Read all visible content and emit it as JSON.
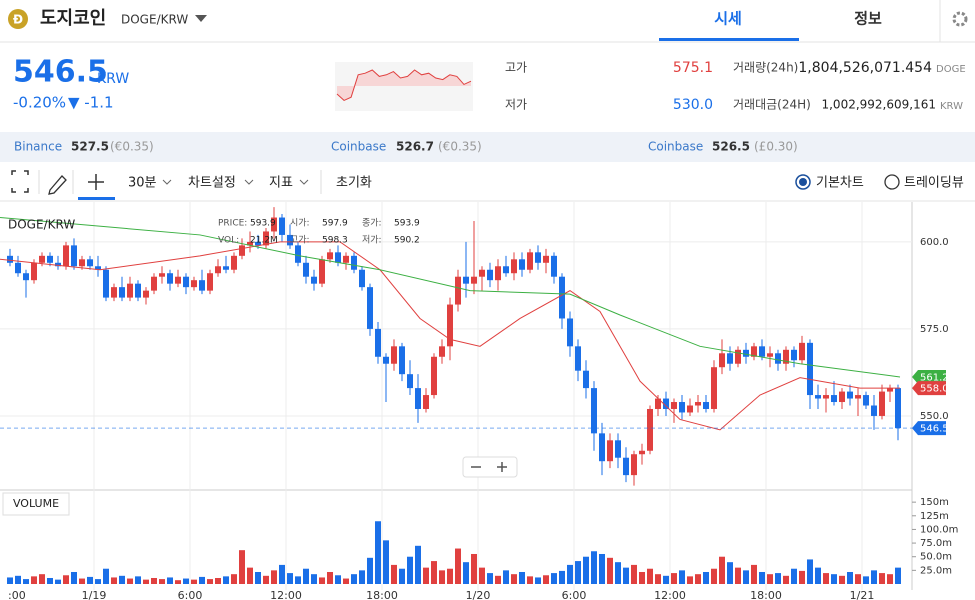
{
  "header": {
    "coin_name": "도지코인",
    "pair": "DOGE/KRW",
    "icon": "Ð",
    "tabs": [
      "시세",
      "정보"
    ]
  },
  "price": {
    "value": "546.5",
    "unit": "KRW",
    "change_pct": "-0.20%",
    "change": "▼ -1.1"
  },
  "sparkline": {
    "values": [
      560,
      556,
      558,
      572,
      573,
      575,
      571,
      572,
      574,
      570,
      571,
      575,
      572,
      573,
      570,
      569,
      572,
      571,
      566,
      568
    ],
    "ylim": [
      550,
      580
    ]
  },
  "stats": {
    "high_label": "고가",
    "high": "575.1",
    "low_label": "저가",
    "low": "530.0",
    "volume_label": "거래량(24h)",
    "volume": "1,804,526,071.454",
    "volume_unit": "DOGE",
    "amount_label": "거래대금(24H)",
    "amount": "1,002,992,609,161",
    "amount_unit": "KRW"
  },
  "exchanges": [
    {
      "name": "Binance",
      "price": "527.5",
      "ref": "(€0.35)"
    },
    {
      "name": "Coinbase",
      "price": "526.7",
      "ref": "(€0.35)"
    },
    {
      "name": "Coinbase",
      "price": "526.5",
      "ref": "(£0.30)"
    }
  ],
  "toolbar": {
    "interval": "30분",
    "settings": "차트설정",
    "indicator": "지표",
    "reset": "초기화",
    "radio_basic": "기본차트",
    "radio_tv": "트레이딩뷰"
  },
  "chart_data": {
    "type": "candlestick",
    "pair_label": "DOGE/KRW",
    "info": {
      "price_label": "PRICE:",
      "price": "593.9",
      "open_label": "시가:",
      "open": "597.9",
      "close_label": "종가:",
      "close": "593.9",
      "vol_label": "VOL:",
      "vol": "21.2M",
      "high_label": "고가:",
      "high": "598.3",
      "low_label": "저가:",
      "low": "590.2"
    },
    "up_color": "#e0403f",
    "down_color": "#1a6fe8",
    "ohlc": [
      [
        596,
        598,
        593,
        594
      ],
      [
        594,
        596,
        590,
        591
      ],
      [
        591,
        592,
        584,
        589
      ],
      [
        589,
        595,
        588,
        594
      ],
      [
        594,
        597,
        593,
        596
      ],
      [
        596,
        597,
        593,
        594
      ],
      [
        594,
        596,
        592,
        593
      ],
      [
        593,
        600,
        592,
        599
      ],
      [
        599,
        601,
        592,
        593
      ],
      [
        593,
        596,
        592,
        595
      ],
      [
        595,
        596,
        592,
        593
      ],
      [
        593,
        596,
        590,
        592
      ],
      [
        592,
        593,
        583,
        584
      ],
      [
        584,
        588,
        583,
        587
      ],
      [
        587,
        590,
        583,
        584
      ],
      [
        584,
        590,
        583,
        588
      ],
      [
        588,
        589,
        583,
        584
      ],
      [
        584,
        587,
        582,
        586
      ],
      [
        586,
        591,
        585,
        590
      ],
      [
        590,
        593,
        588,
        591
      ],
      [
        591,
        592,
        586,
        588
      ],
      [
        588,
        592,
        587,
        590
      ],
      [
        590,
        591,
        585,
        587
      ],
      [
        587,
        590,
        586,
        589
      ],
      [
        589,
        592,
        585,
        586
      ],
      [
        586,
        592,
        585,
        591
      ],
      [
        591,
        595,
        590,
        593
      ],
      [
        593,
        596,
        591,
        592
      ],
      [
        592,
        597,
        591,
        596
      ],
      [
        596,
        601,
        595,
        599
      ],
      [
        599,
        603,
        597,
        600
      ],
      [
        600,
        602,
        598,
        599
      ],
      [
        599,
        604,
        598,
        603
      ],
      [
        603,
        610,
        601,
        607
      ],
      [
        607,
        608,
        600,
        602
      ],
      [
        602,
        605,
        598,
        599
      ],
      [
        599,
        600,
        593,
        594
      ],
      [
        594,
        596,
        588,
        590
      ],
      [
        590,
        592,
        586,
        588
      ],
      [
        588,
        596,
        587,
        595
      ],
      [
        595,
        598,
        594,
        597
      ],
      [
        597,
        599,
        593,
        594
      ],
      [
        594,
        597,
        592,
        596
      ],
      [
        596,
        597,
        591,
        592
      ],
      [
        592,
        593,
        586,
        587
      ],
      [
        587,
        588,
        573,
        575
      ],
      [
        575,
        577,
        565,
        567
      ],
      [
        567,
        568,
        554,
        565
      ],
      [
        565,
        572,
        563,
        570
      ],
      [
        570,
        571,
        560,
        562
      ],
      [
        562,
        566,
        556,
        558
      ],
      [
        558,
        562,
        548,
        552
      ],
      [
        552,
        558,
        551,
        556
      ],
      [
        556,
        568,
        555,
        567
      ],
      [
        567,
        572,
        565,
        570
      ],
      [
        570,
        584,
        566,
        582
      ],
      [
        582,
        592,
        580,
        590
      ],
      [
        590,
        600,
        584,
        588
      ],
      [
        588,
        606,
        585,
        590
      ],
      [
        590,
        593,
        586,
        592
      ],
      [
        592,
        594,
        587,
        589
      ],
      [
        589,
        595,
        586,
        593
      ],
      [
        593,
        596,
        590,
        591
      ],
      [
        591,
        597,
        589,
        595
      ],
      [
        595,
        597,
        590,
        592
      ],
      [
        592,
        598,
        591,
        597
      ],
      [
        597,
        599,
        592,
        594
      ],
      [
        594,
        598,
        591,
        596
      ],
      [
        596,
        597,
        588,
        590
      ],
      [
        590,
        591,
        575,
        578
      ],
      [
        578,
        580,
        567,
        570
      ],
      [
        570,
        572,
        560,
        563
      ],
      [
        563,
        566,
        555,
        558
      ],
      [
        558,
        560,
        540,
        545
      ],
      [
        545,
        548,
        533,
        537
      ],
      [
        537,
        545,
        535,
        543
      ],
      [
        543,
        545,
        535,
        538
      ],
      [
        538,
        541,
        531,
        533
      ],
      [
        533,
        540,
        530,
        539
      ],
      [
        539,
        542,
        536,
        540
      ],
      [
        540,
        553,
        539,
        552
      ],
      [
        552,
        556,
        550,
        555
      ],
      [
        555,
        557,
        550,
        552
      ],
      [
        552,
        555,
        548,
        554
      ],
      [
        554,
        556,
        549,
        551
      ],
      [
        551,
        555,
        550,
        553
      ],
      [
        553,
        556,
        551,
        554
      ],
      [
        554,
        556,
        551,
        552
      ],
      [
        552,
        566,
        551,
        564
      ],
      [
        564,
        572,
        562,
        568
      ],
      [
        568,
        570,
        563,
        565
      ],
      [
        565,
        570,
        564,
        569
      ],
      [
        569,
        571,
        565,
        567
      ],
      [
        567,
        571,
        566,
        570
      ],
      [
        570,
        572,
        566,
        567
      ],
      [
        567,
        570,
        564,
        568
      ],
      [
        568,
        569,
        563,
        565
      ],
      [
        565,
        570,
        563,
        569
      ],
      [
        569,
        570,
        564,
        566
      ],
      [
        566,
        573,
        565,
        571
      ],
      [
        571,
        572,
        552,
        556
      ],
      [
        556,
        559,
        552,
        555
      ],
      [
        555,
        558,
        551,
        556
      ],
      [
        556,
        560,
        553,
        554
      ],
      [
        554,
        558,
        552,
        557
      ],
      [
        557,
        559,
        553,
        555
      ],
      [
        555,
        558,
        550,
        556
      ],
      [
        556,
        557,
        552,
        553
      ],
      [
        553,
        556,
        546,
        550
      ],
      [
        550,
        559,
        549,
        557
      ],
      [
        557,
        559,
        554,
        558
      ],
      [
        558,
        559,
        543,
        546.5
      ]
    ],
    "volume": [
      12,
      15,
      9,
      14,
      18,
      11,
      8,
      16,
      22,
      10,
      13,
      9,
      28,
      12,
      15,
      10,
      14,
      8,
      11,
      9,
      12,
      7,
      10,
      8,
      13,
      9,
      11,
      14,
      18,
      62,
      30,
      22,
      15,
      25,
      35,
      20,
      14,
      28,
      18,
      12,
      22,
      16,
      10,
      18,
      25,
      48,
      115,
      80,
      35,
      28,
      50,
      70,
      30,
      42,
      25,
      28,
      65,
      40,
      55,
      30,
      20,
      15,
      25,
      18,
      22,
      14,
      12,
      16,
      20,
      24,
      35,
      42,
      50,
      60,
      55,
      48,
      40,
      30,
      35,
      22,
      28,
      18,
      15,
      20,
      25,
      14,
      18,
      22,
      28,
      50,
      40,
      30,
      25,
      35,
      22,
      18,
      20,
      15,
      28,
      24,
      45,
      30,
      20,
      18,
      15,
      22,
      18,
      14,
      25,
      20,
      18,
      30
    ],
    "volume_label": "VOLUME",
    "volume_ylim": [
      0,
      168.6
    ],
    "volume_yticks": [
      {
        "value": 150,
        "label": "150m"
      },
      {
        "value": 125,
        "label": "125m"
      },
      {
        "value": 100,
        "label": "100.0m"
      },
      {
        "value": 75,
        "label": "75.0m"
      },
      {
        "value": 50,
        "label": "50.0m"
      },
      {
        "value": 25,
        "label": "25.0m"
      }
    ],
    "ylim": [
      529.3,
      610.6
    ],
    "yticks": [
      {
        "value": 600,
        "label": "600.0"
      },
      {
        "value": 575,
        "label": "575.0"
      },
      {
        "value": 550,
        "label": "550.0"
      }
    ],
    "xlim": [
      -1.25,
      111.875
    ],
    "xticks": [
      {
        "value": -1.5,
        "label": ":00"
      },
      {
        "value": 10.5,
        "label": "1/19"
      },
      {
        "value": 22.5,
        "label": "6:00"
      },
      {
        "value": 34.5,
        "label": "12:00"
      },
      {
        "value": 46.5,
        "label": "18:00"
      },
      {
        "value": 58.5,
        "label": "1/20"
      },
      {
        "value": 70.5,
        "label": "6:00"
      },
      {
        "value": 82.5,
        "label": "12:00"
      },
      {
        "value": 94.5,
        "label": "18:00"
      },
      {
        "value": 106.5,
        "label": "1/21"
      }
    ],
    "ma_lines": [
      {
        "color": "#e0403f",
        "x": [
          -1.25,
          11.25,
          23.75,
          33.75,
          41.25,
          46.25,
          51.25,
          55,
          58.75,
          63.75,
          70,
          73.75,
          78.75,
          83.75,
          88.75,
          93.75,
          98.75,
          106.25,
          111.25
        ],
        "values": [
          595,
          592,
          596,
          600,
          600,
          592,
          578,
          572,
          570,
          578,
          586,
          580,
          560,
          549,
          546,
          556,
          561,
          558,
          558
        ]
      },
      {
        "color": "#3cb043",
        "x": [
          -1.25,
          23.75,
          36.25,
          46.25,
          57.5,
          70,
          76.25,
          86.25,
          98.75,
          111.25
        ],
        "values": [
          607,
          602,
          596,
          592,
          586,
          585,
          579,
          570,
          565,
          561.2
        ]
      }
    ],
    "price_tags": [
      {
        "value": 561.2,
        "label": "561.2",
        "color": "#3cb043"
      },
      {
        "value": 558.0,
        "label": "558.0",
        "color": "#e0403f"
      },
      {
        "value": 546.5,
        "label": "546.5",
        "color": "#1a6fe8"
      }
    ]
  }
}
